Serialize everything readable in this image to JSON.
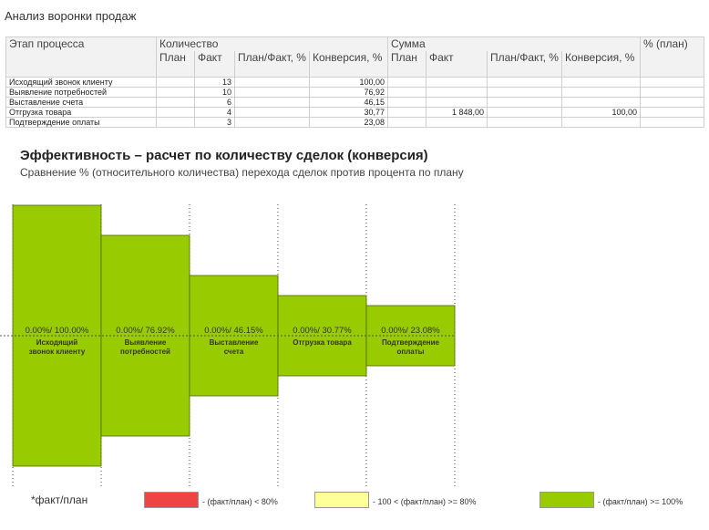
{
  "title": "Анализ воронки продаж",
  "table": {
    "header_row1": [
      "Этап процесса",
      "Количество",
      "Сумма",
      "% (план)"
    ],
    "header_row2": [
      "План",
      "Факт",
      "План/Факт, %",
      "Конверсия, %",
      "План",
      "Факт",
      "План/Факт, %",
      "Конверсия, %"
    ],
    "rows": [
      {
        "stage": "Исходящий звонок клиенту",
        "qty_plan": "",
        "qty_fact": "13",
        "qty_pf": "",
        "qty_conv": "100,00",
        "sum_plan": "",
        "sum_fact": "",
        "sum_pf": "",
        "sum_conv": "",
        "pct_plan": ""
      },
      {
        "stage": "Выявление потребностей",
        "qty_plan": "",
        "qty_fact": "10",
        "qty_pf": "",
        "qty_conv": "76,92",
        "sum_plan": "",
        "sum_fact": "",
        "sum_pf": "",
        "sum_conv": "",
        "pct_plan": ""
      },
      {
        "stage": "Выставление счета",
        "qty_plan": "",
        "qty_fact": "6",
        "qty_pf": "",
        "qty_conv": "46,15",
        "sum_plan": "",
        "sum_fact": "",
        "sum_pf": "",
        "sum_conv": "",
        "pct_plan": ""
      },
      {
        "stage": "Отгрузка товара",
        "qty_plan": "",
        "qty_fact": "4",
        "qty_pf": "",
        "qty_conv": "30,77",
        "sum_plan": "",
        "sum_fact": "1 848,00",
        "sum_pf": "",
        "sum_conv": "100,00",
        "pct_plan": ""
      },
      {
        "stage": "Подтверждение оплаты",
        "qty_plan": "",
        "qty_fact": "3",
        "qty_pf": "",
        "qty_conv": "23,08",
        "sum_plan": "",
        "sum_fact": "",
        "sum_pf": "",
        "sum_conv": "",
        "pct_plan": ""
      }
    ]
  },
  "chart_heading": "Эффективность – расчет по количеству сделок (конверсия)",
  "chart_subheading": "Сравнение % (относительного количества) перехода сделок против процента по плану",
  "chart_data": {
    "type": "bar",
    "categories": [
      "Исходящий звонок клиенту",
      "Выявление потребностей",
      "Выставление счета",
      "Отгрузка товара",
      "Подтверждение оплаты"
    ],
    "values": [
      100,
      76.92,
      46.15,
      30.77,
      23.08
    ],
    "data_labels": [
      "0.00%/ 100.00%",
      "0.00%/ 76.92%",
      "0.00%/ 46.15%",
      "0.00%/ 30.77%",
      "0.00%/ 23.08%"
    ],
    "bar_color": "#99cc00",
    "ylim": [
      0,
      100
    ]
  },
  "legend": {
    "note": "*факт/план",
    "items": [
      {
        "label": "- (факт/план) < 80%",
        "color": "#ee4444"
      },
      {
        "label": "- 100 < (факт/план) >= 80%",
        "color": "#ffff99"
      },
      {
        "label": "- (факт/план) >= 100%",
        "color": "#99cc00"
      }
    ]
  }
}
